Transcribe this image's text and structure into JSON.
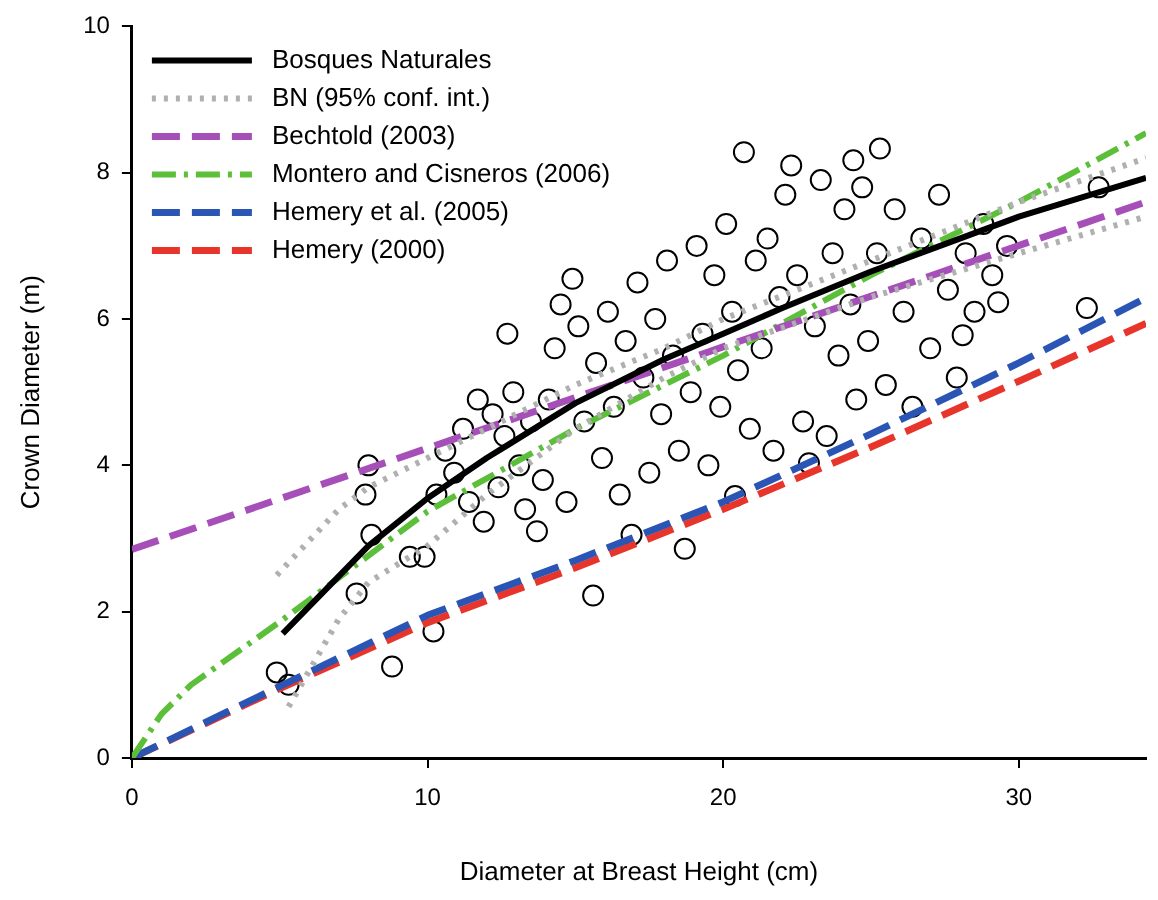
{
  "chart_data": {
    "type": "scatter",
    "xlabel": "Diameter at Breast Height (cm)",
    "ylabel": "Crown Diameter (m)",
    "xlim": [
      0,
      34.3
    ],
    "ylim": [
      0,
      10
    ],
    "xticks": [
      0,
      10,
      20,
      30
    ],
    "yticks": [
      0,
      2,
      4,
      6,
      8,
      10
    ],
    "grid": false,
    "legend": "top left",
    "series": [
      {
        "color": "#000000",
        "marker": "circle",
        "x": [
          4.9,
          5.3,
          7.6,
          7.9,
          8.0,
          8.1,
          8.8,
          9.4,
          9.9,
          10.2,
          11.9,
          12.7,
          14.9,
          14.5,
          15.6,
          20.7,
          25.3,
          22.3,
          24.4,
          18.7,
          32.3,
          32.7,
          29.3,
          28.1,
          20.4,
          22.9,
          16.9,
          13.7,
          10.3,
          10.6,
          10.9,
          11.2,
          11.4,
          11.7,
          12.2,
          12.4,
          12.6,
          12.9,
          13.1,
          13.3,
          13.5,
          13.9,
          14.1,
          14.3,
          14.7,
          15.1,
          15.3,
          15.7,
          15.9,
          16.1,
          16.3,
          16.5,
          16.7,
          17.1,
          17.3,
          17.5,
          17.7,
          17.9,
          18.1,
          18.3,
          18.5,
          18.9,
          19.1,
          19.3,
          19.5,
          19.7,
          19.9,
          20.1,
          20.3,
          20.5,
          20.9,
          21.1,
          21.3,
          21.5,
          21.7,
          21.9,
          22.1,
          22.5,
          22.7,
          23.1,
          23.3,
          23.5,
          23.7,
          23.9,
          24.1,
          24.3,
          24.5,
          24.7,
          24.9,
          25.2,
          25.5,
          25.8,
          26.1,
          26.4,
          26.7,
          27.0,
          27.3,
          27.6,
          27.9,
          28.2,
          28.5,
          28.8,
          29.1,
          29.6
        ],
        "values": [
          1.17,
          1.0,
          2.25,
          3.6,
          4.0,
          3.05,
          1.25,
          2.75,
          2.75,
          1.73,
          3.23,
          5.8,
          6.55,
          6.2,
          2.22,
          8.28,
          8.33,
          8.1,
          8.17,
          2.86,
          6.15,
          7.8,
          6.23,
          5.78,
          3.58,
          4.03,
          3.05,
          3.1,
          3.6,
          4.2,
          3.9,
          4.5,
          3.5,
          4.9,
          4.7,
          3.7,
          4.4,
          5.0,
          4.0,
          3.4,
          4.6,
          3.8,
          4.9,
          5.6,
          3.5,
          5.9,
          4.6,
          5.4,
          4.1,
          6.1,
          4.8,
          3.6,
          5.7,
          6.5,
          5.2,
          3.9,
          6.0,
          4.7,
          6.8,
          5.5,
          4.2,
          5.0,
          7.0,
          5.8,
          4.0,
          6.6,
          4.8,
          7.3,
          6.1,
          5.3,
          4.5,
          6.8,
          5.6,
          7.1,
          4.2,
          6.3,
          7.7,
          6.6,
          4.6,
          5.9,
          7.9,
          4.4,
          6.9,
          5.5,
          7.5,
          6.2,
          4.9,
          7.8,
          5.7,
          6.9,
          5.1,
          7.5,
          6.1,
          4.8,
          7.1,
          5.6,
          7.7,
          6.4,
          5.2,
          6.9,
          6.1,
          7.3,
          6.6,
          7.0
        ]
      },
      {
        "type": "line",
        "name": "Bosques Naturales",
        "color": "#000000",
        "marker": "none",
        "line_style": "solid",
        "x": [
          5.1,
          8,
          10,
          12,
          15,
          18,
          20,
          22,
          25,
          28,
          30,
          34.3
        ],
        "values": [
          1.7,
          2.9,
          3.55,
          4.1,
          4.85,
          5.45,
          5.8,
          6.15,
          6.65,
          7.1,
          7.4,
          7.93
        ]
      },
      {
        "type": "line",
        "name": "BN (95% conf. int.)",
        "color": "#b0b0b0",
        "marker": "none",
        "line_style": "dotted",
        "x": [
          5.3,
          7,
          8,
          10,
          12,
          15,
          18,
          20,
          25,
          30,
          34.3,
          null,
          4.9,
          7,
          8,
          10,
          12,
          15,
          18,
          20,
          25,
          30,
          34.3
        ],
        "values": [
          0.7,
          1.9,
          2.4,
          2.9,
          3.6,
          4.5,
          5.2,
          5.6,
          6.3,
          6.9,
          7.4,
          null,
          2.5,
          3.4,
          3.7,
          4.1,
          4.5,
          5.1,
          5.6,
          6.0,
          6.8,
          7.6,
          8.2
        ]
      },
      {
        "type": "line",
        "name": "Bechtold (2003)",
        "color": "#a64fb8",
        "marker": "none",
        "line_style": "dashed",
        "x": [
          0,
          34.3
        ],
        "values": [
          2.85,
          7.6
        ]
      },
      {
        "type": "line",
        "name": "Montero and Cisneros (2006)",
        "color": "#5cbf3a",
        "marker": "none",
        "line_style": "dashdot",
        "x": [
          0,
          1,
          2,
          5,
          10,
          15,
          20,
          25,
          30,
          34.3
        ],
        "values": [
          0,
          0.6,
          1.0,
          1.86,
          3.37,
          4.5,
          5.5,
          6.6,
          7.6,
          8.54
        ]
      },
      {
        "type": "line",
        "name": "Hemery et al. (2005)",
        "color": "#2a55b5",
        "marker": "none",
        "line_style": "dashed",
        "x": [
          0,
          5,
          10,
          15,
          20,
          25,
          30,
          34.3
        ],
        "values": [
          0,
          0.98,
          1.95,
          2.7,
          3.5,
          4.43,
          5.4,
          6.29
        ]
      },
      {
        "type": "line",
        "name": "Hemery (2000)",
        "color": "#e8352b",
        "marker": "none",
        "line_style": "dashed",
        "x": [
          0,
          5,
          10,
          15,
          20,
          25,
          30,
          34.3
        ],
        "values": [
          0,
          0.95,
          1.85,
          2.6,
          3.4,
          4.25,
          5.15,
          5.94
        ]
      }
    ]
  }
}
